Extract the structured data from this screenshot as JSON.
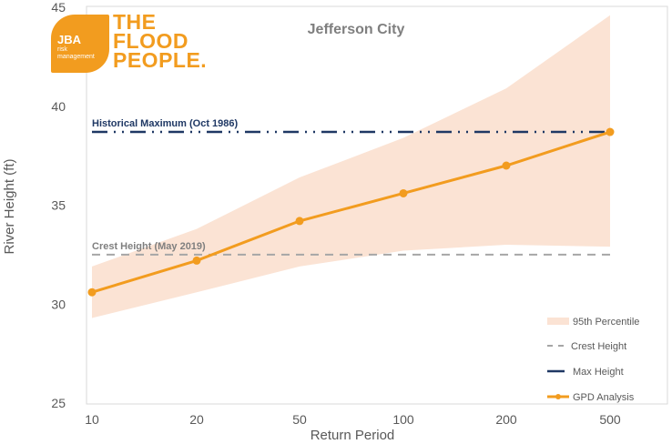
{
  "chart_data": {
    "type": "line",
    "title": "Jefferson City",
    "xlabel": "Return Period",
    "ylabel": "River Height (ft)",
    "categories": [
      "10",
      "20",
      "50",
      "100",
      "200",
      "500"
    ],
    "ylim": [
      25,
      45
    ],
    "yticks": [
      25,
      30,
      35,
      40,
      45
    ],
    "grid": false,
    "series": [
      {
        "name": "GPD Analysis",
        "type": "line-markers",
        "color": "#f29c1f",
        "values": [
          30.6,
          32.2,
          34.2,
          35.6,
          37.0,
          38.7
        ]
      },
      {
        "name": "95th Percentile",
        "type": "band",
        "color": "#fbe3d4",
        "upper": [
          31.9,
          33.8,
          36.4,
          38.4,
          40.9,
          44.6
        ],
        "lower": [
          29.3,
          30.6,
          31.9,
          32.7,
          33.0,
          32.9
        ]
      },
      {
        "name": "Crest Height",
        "type": "hline",
        "color": "#a6a6a6",
        "value": 32.5,
        "label": "Crest Height (May 2019)"
      },
      {
        "name": "Max Height",
        "type": "hline",
        "color": "#1f3864",
        "value": 38.7,
        "label": "Historical Maximum (Oct 1986)"
      }
    ],
    "legend": {
      "position": "bottom-right",
      "entries": [
        "95th Percentile",
        "Crest Height",
        "Max Height",
        "GPD Analysis"
      ]
    }
  },
  "logo": {
    "badge": "JBA",
    "sub1": "risk",
    "sub2": "management",
    "line1": "THE",
    "line2": "FLOOD",
    "line3": "PEOPLE.",
    "color": "#f29c1f"
  }
}
